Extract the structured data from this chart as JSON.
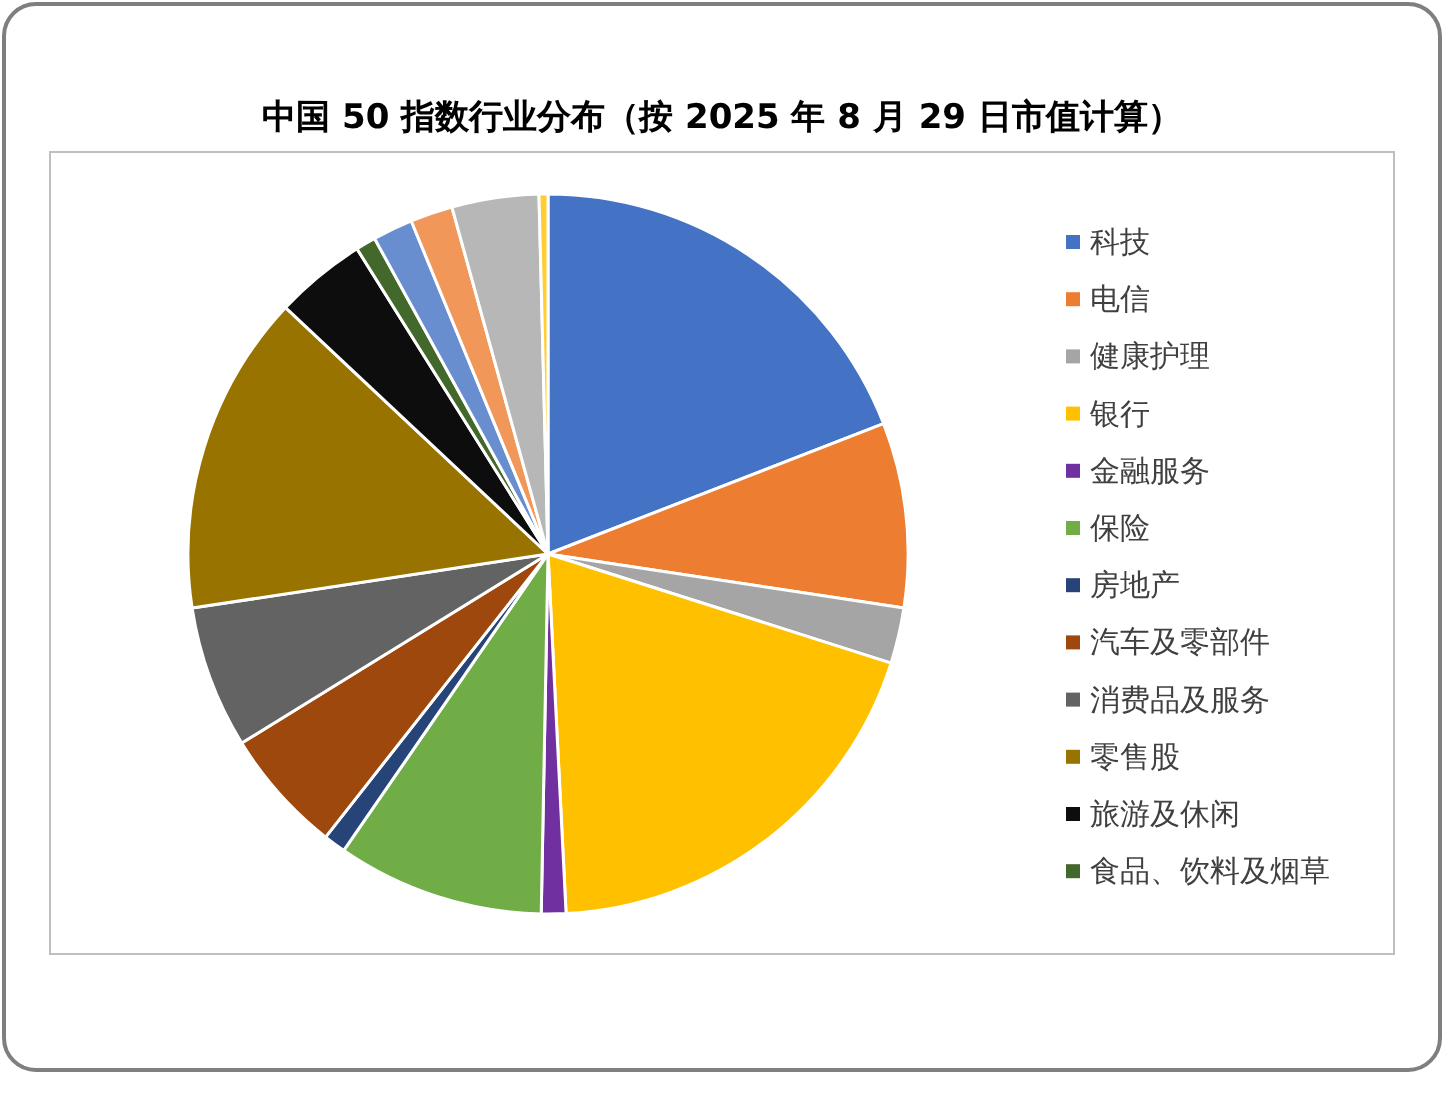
{
  "chart_data": {
    "type": "pie",
    "title": "中国 50 指数行业分布（按 2025 年 8 月 29 日市值计算）",
    "categories": [
      "科技",
      "电信",
      "健康护理",
      "银行",
      "金融服务",
      "保险",
      "房地产",
      "汽车及零部件",
      "消费品及服务",
      "零售股",
      "旅游及休闲",
      "食品、饮料及烟草",
      null,
      null,
      null,
      null
    ],
    "values": [
      19.1,
      8.3,
      2.5,
      19.3,
      1.1,
      9.3,
      1.0,
      5.6,
      6.4,
      14.4,
      4.1,
      0.9,
      1.8,
      1.9,
      3.9,
      0.4
    ],
    "colors": [
      "#4472c4",
      "#ed7d31",
      "#a5a5a5",
      "#ffc000",
      "#7030a0",
      "#70ad47",
      "#264478",
      "#9e480e",
      "#636363",
      "#997300",
      "#0d0d0d",
      "#43682b",
      "#698ed0",
      "#f1975a",
      "#b7b7b7",
      "#ffcd33"
    ],
    "legend": "right"
  }
}
